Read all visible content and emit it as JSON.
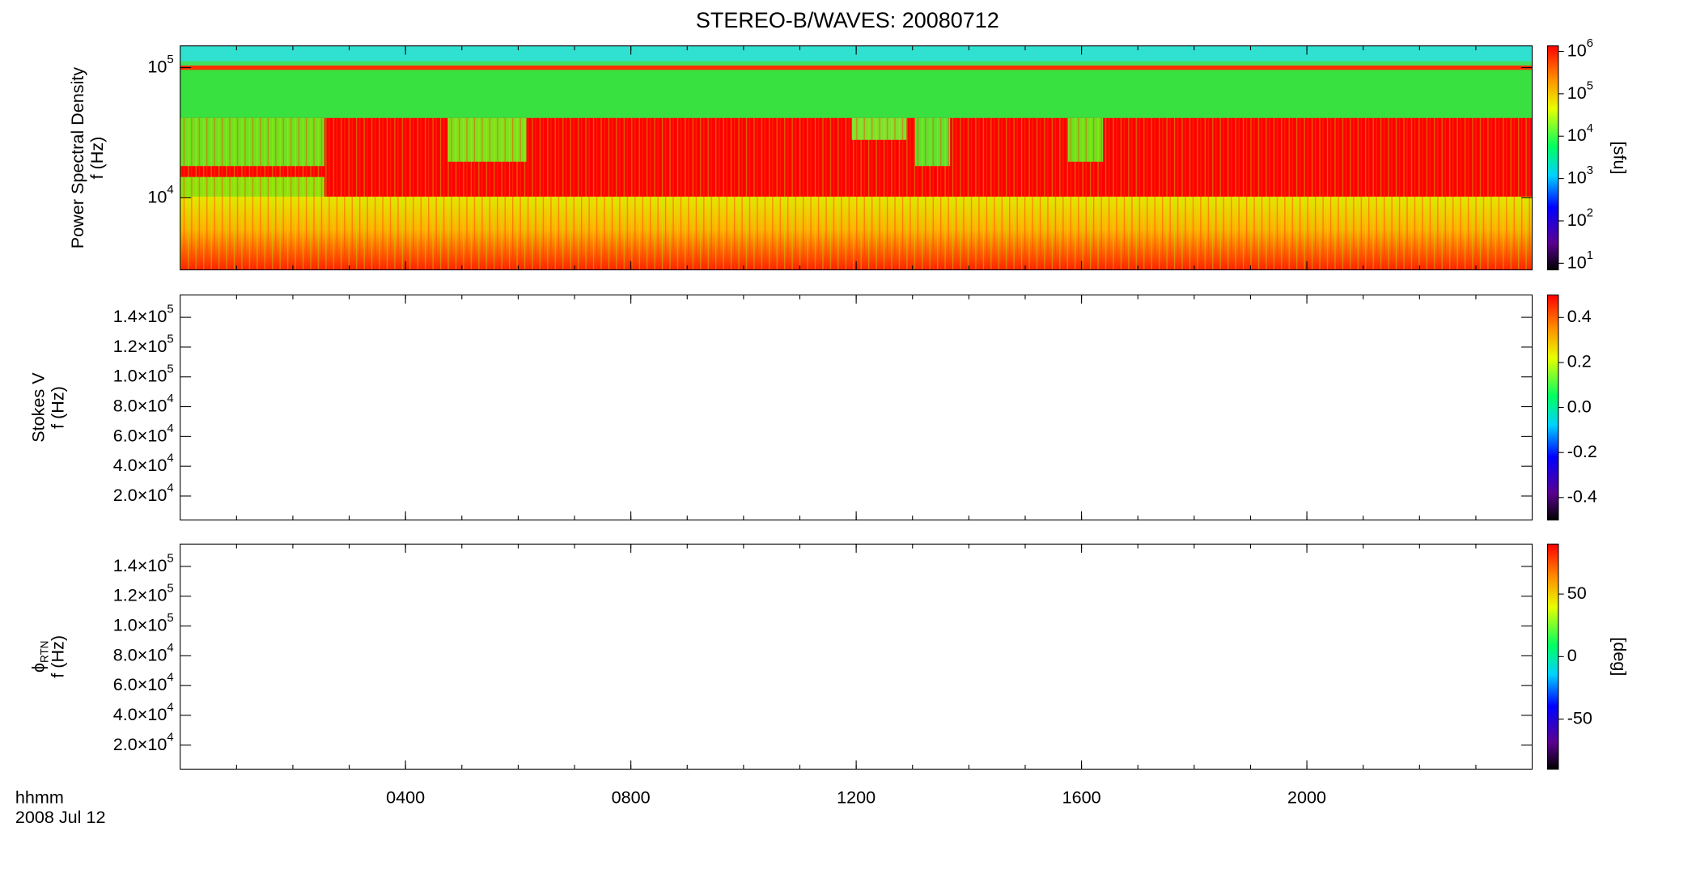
{
  "chart_data": [
    {
      "type": "heatmap",
      "title": "STEREO-B/WAVES: 20080712",
      "ylabel": [
        "Power Spectral Density",
        "f (Hz)"
      ],
      "ylog": true,
      "ylim": [
        2790,
        147000
      ],
      "yticks": [
        {
          "value": 10000,
          "label": "10",
          "exponent": "4"
        },
        {
          "value": 100000,
          "label": "10",
          "exponent": "5"
        }
      ],
      "clog": true,
      "clim": [
        7,
        1350000
      ],
      "cticks": [
        {
          "value": 10,
          "label": "10",
          "exponent": "1"
        },
        {
          "value": 100,
          "label": "10",
          "exponent": "2"
        },
        {
          "value": 1000,
          "label": "10",
          "exponent": "3"
        },
        {
          "value": 10000,
          "label": "10",
          "exponent": "4"
        },
        {
          "value": 100000,
          "label": "10",
          "exponent": "5"
        },
        {
          "value": 1000000,
          "label": "10",
          "exponent": "6"
        }
      ],
      "clabel": "[sfu]"
    },
    {
      "type": "heatmap",
      "ylabel": [
        "Stokes V",
        "f (Hz)"
      ],
      "ylog": false,
      "ylim": [
        3900,
        155000
      ],
      "yticks": [
        {
          "value": 20000,
          "label": "2.0×10",
          "exponent": "4"
        },
        {
          "value": 40000,
          "label": "4.0×10",
          "exponent": "4"
        },
        {
          "value": 60000,
          "label": "6.0×10",
          "exponent": "4"
        },
        {
          "value": 80000,
          "label": "8.0×10",
          "exponent": "4"
        },
        {
          "value": 100000,
          "label": "1.0×10",
          "exponent": "5"
        },
        {
          "value": 120000,
          "label": "1.2×10",
          "exponent": "5"
        },
        {
          "value": 140000,
          "label": "1.4×10",
          "exponent": "5"
        }
      ],
      "clog": false,
      "clim": [
        -0.5,
        0.5
      ],
      "cticks": [
        -0.4,
        -0.2,
        {
          "value": 0,
          "label": "0.0"
        },
        0.2,
        0.4
      ]
    },
    {
      "type": "heatmap",
      "ylabel": [
        {
          "text": "ϕ",
          "sub": "RTN"
        },
        "f (Hz)"
      ],
      "ylog": false,
      "ylim": [
        3900,
        155000
      ],
      "yticks": [
        {
          "value": 20000,
          "label": "2.0×10",
          "exponent": "4"
        },
        {
          "value": 40000,
          "label": "4.0×10",
          "exponent": "4"
        },
        {
          "value": 60000,
          "label": "6.0×10",
          "exponent": "4"
        },
        {
          "value": 80000,
          "label": "8.0×10",
          "exponent": "4"
        },
        {
          "value": 100000,
          "label": "1.0×10",
          "exponent": "5"
        },
        {
          "value": 120000,
          "label": "1.2×10",
          "exponent": "5"
        },
        {
          "value": 140000,
          "label": "1.4×10",
          "exponent": "5"
        }
      ],
      "clog": false,
      "clim": [
        -90,
        90
      ],
      "cticks": [
        -50,
        0,
        50
      ],
      "clabel": "[deg]",
      "xlabel": [
        "hhmm",
        "2008 Jul 12"
      ],
      "xlim": [
        0,
        24
      ],
      "xticks": [
        {
          "value": 4,
          "label": "0400"
        },
        {
          "value": 8,
          "label": "0800"
        },
        {
          "value": 12,
          "label": "1200"
        },
        {
          "value": 16,
          "label": "1600"
        },
        {
          "value": 20,
          "label": "2000"
        }
      ]
    }
  ]
}
